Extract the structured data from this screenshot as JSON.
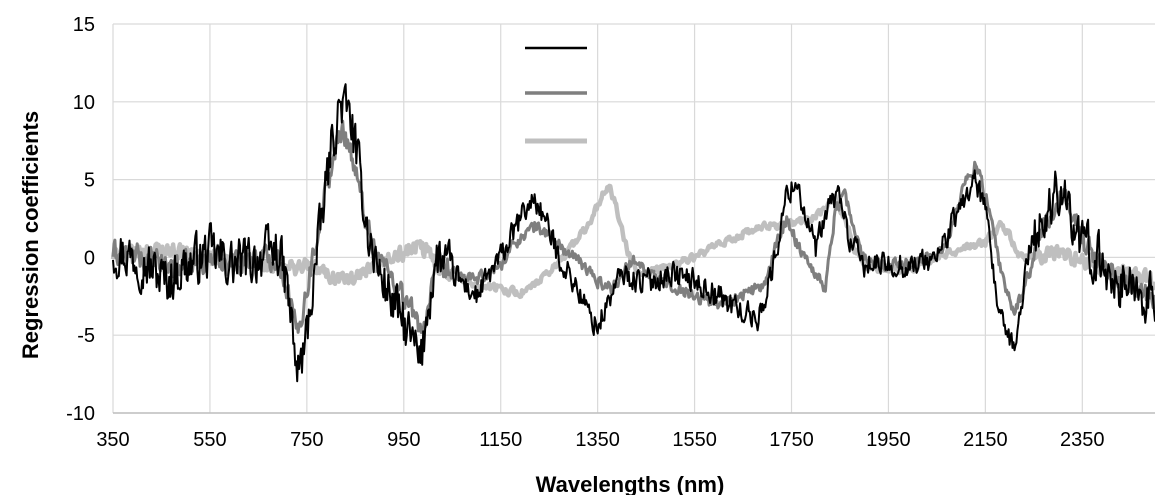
{
  "chart_data": {
    "type": "line",
    "title": "",
    "xlabel": "Wavelengths (nm)",
    "ylabel": "Regression coefficients",
    "xlim": [
      350,
      2500
    ],
    "ylim": [
      -10,
      15
    ],
    "x_ticks": [
      350,
      550,
      750,
      950,
      1150,
      1350,
      1550,
      1750,
      1950,
      2150,
      2350
    ],
    "y_ticks": [
      -10,
      -5,
      0,
      5,
      10,
      15
    ],
    "grid": true,
    "legend": {
      "position": "top-center",
      "entries_labeled": false
    },
    "series": [
      {
        "color": "#000000",
        "noise": 1.6,
        "points": [
          [
            350,
            0.5
          ],
          [
            400,
            0
          ],
          [
            460,
            -1.5
          ],
          [
            500,
            -0.5
          ],
          [
            550,
            0.3
          ],
          [
            600,
            -0.5
          ],
          [
            650,
            0
          ],
          [
            690,
            0.5
          ],
          [
            710,
            -2
          ],
          [
            730,
            -7.5
          ],
          [
            745,
            -6
          ],
          [
            770,
            0
          ],
          [
            800,
            7
          ],
          [
            820,
            10
          ],
          [
            840,
            9
          ],
          [
            860,
            5
          ],
          [
            880,
            1
          ],
          [
            900,
            -1
          ],
          [
            930,
            -3
          ],
          [
            960,
            -5
          ],
          [
            975,
            -6
          ],
          [
            985,
            -7
          ],
          [
            1000,
            -3
          ],
          [
            1020,
            0
          ],
          [
            1050,
            -1
          ],
          [
            1100,
            -2.5
          ],
          [
            1150,
            0
          ],
          [
            1200,
            3
          ],
          [
            1220,
            3.8
          ],
          [
            1240,
            2.5
          ],
          [
            1270,
            0
          ],
          [
            1300,
            -1.5
          ],
          [
            1330,
            -3.5
          ],
          [
            1350,
            -4.5
          ],
          [
            1370,
            -3
          ],
          [
            1400,
            -1
          ],
          [
            1430,
            -1.5
          ],
          [
            1460,
            -1.5
          ],
          [
            1500,
            -1
          ],
          [
            1550,
            -1.5
          ],
          [
            1600,
            -2.5
          ],
          [
            1650,
            -3.5
          ],
          [
            1680,
            -4
          ],
          [
            1710,
            -1
          ],
          [
            1740,
            4
          ],
          [
            1760,
            5
          ],
          [
            1780,
            2.5
          ],
          [
            1800,
            0.5
          ],
          [
            1830,
            3.5
          ],
          [
            1850,
            4
          ],
          [
            1870,
            1
          ],
          [
            1900,
            -0.5
          ],
          [
            1950,
            -0.5
          ],
          [
            2000,
            -0.5
          ],
          [
            2050,
            0
          ],
          [
            2080,
            2
          ],
          [
            2110,
            4
          ],
          [
            2130,
            5
          ],
          [
            2150,
            3
          ],
          [
            2170,
            -2
          ],
          [
            2190,
            -5
          ],
          [
            2210,
            -6
          ],
          [
            2240,
            0.5
          ],
          [
            2280,
            3
          ],
          [
            2310,
            5
          ],
          [
            2340,
            1
          ],
          [
            2380,
            0
          ],
          [
            2420,
            -1.5
          ],
          [
            2460,
            -2
          ],
          [
            2500,
            -3
          ]
        ]
      },
      {
        "color": "#7f7f7f",
        "noise": 0.8,
        "points": [
          [
            350,
            0.3
          ],
          [
            400,
            0
          ],
          [
            460,
            -0.5
          ],
          [
            500,
            -0.5
          ],
          [
            550,
            0
          ],
          [
            600,
            -0.3
          ],
          [
            650,
            0
          ],
          [
            690,
            0
          ],
          [
            710,
            -2
          ],
          [
            730,
            -5
          ],
          [
            750,
            -2
          ],
          [
            780,
            3
          ],
          [
            810,
            7
          ],
          [
            825,
            8.3
          ],
          [
            840,
            7
          ],
          [
            860,
            4
          ],
          [
            880,
            1.5
          ],
          [
            900,
            0
          ],
          [
            920,
            -1
          ],
          [
            950,
            -2.5
          ],
          [
            975,
            -4
          ],
          [
            990,
            -4.5
          ],
          [
            1000,
            -3.5
          ],
          [
            1020,
            -0.5
          ],
          [
            1050,
            -1
          ],
          [
            1100,
            -1.5
          ],
          [
            1150,
            -0.5
          ],
          [
            1180,
            1
          ],
          [
            1220,
            2
          ],
          [
            1250,
            1.5
          ],
          [
            1280,
            0.5
          ],
          [
            1320,
            -0.5
          ],
          [
            1350,
            -1.5
          ],
          [
            1380,
            -2
          ],
          [
            1400,
            -1
          ],
          [
            1430,
            0
          ],
          [
            1450,
            -1
          ],
          [
            1480,
            -1.5
          ],
          [
            1520,
            -2
          ],
          [
            1550,
            -2.5
          ],
          [
            1600,
            -3
          ],
          [
            1640,
            -2.5
          ],
          [
            1680,
            -2
          ],
          [
            1700,
            -1.5
          ],
          [
            1720,
            1
          ],
          [
            1740,
            2.5
          ],
          [
            1760,
            1
          ],
          [
            1780,
            0
          ],
          [
            1800,
            -1
          ],
          [
            1820,
            -2
          ],
          [
            1840,
            3
          ],
          [
            1860,
            4.2
          ],
          [
            1880,
            1.5
          ],
          [
            1900,
            0
          ],
          [
            1950,
            -0.5
          ],
          [
            2000,
            -0.3
          ],
          [
            2050,
            0
          ],
          [
            2080,
            2
          ],
          [
            2110,
            5
          ],
          [
            2130,
            6
          ],
          [
            2150,
            4
          ],
          [
            2170,
            1
          ],
          [
            2190,
            -2
          ],
          [
            2210,
            -3.5
          ],
          [
            2230,
            -2
          ],
          [
            2260,
            1
          ],
          [
            2290,
            3
          ],
          [
            2320,
            4
          ],
          [
            2350,
            1
          ],
          [
            2380,
            0
          ],
          [
            2420,
            -1
          ],
          [
            2460,
            -2
          ],
          [
            2500,
            -3
          ]
        ]
      },
      {
        "color": "#bfbfbf",
        "noise": 0.5,
        "points": [
          [
            350,
            0
          ],
          [
            400,
            0.3
          ],
          [
            460,
            0.5
          ],
          [
            500,
            0.3
          ],
          [
            550,
            0
          ],
          [
            600,
            -0.3
          ],
          [
            650,
            -0.4
          ],
          [
            700,
            -0.7
          ],
          [
            750,
            -0.5
          ],
          [
            800,
            -1.2
          ],
          [
            850,
            -1.5
          ],
          [
            900,
            -0.5
          ],
          [
            950,
            0.3
          ],
          [
            980,
            0.7
          ],
          [
            1000,
            0.3
          ],
          [
            1020,
            -0.5
          ],
          [
            1050,
            -1
          ],
          [
            1100,
            -1.8
          ],
          [
            1150,
            -2
          ],
          [
            1190,
            -2.3
          ],
          [
            1210,
            -2
          ],
          [
            1250,
            -1
          ],
          [
            1290,
            0.5
          ],
          [
            1330,
            2
          ],
          [
            1360,
            4
          ],
          [
            1375,
            4.5
          ],
          [
            1390,
            3
          ],
          [
            1410,
            0.5
          ],
          [
            1430,
            -1
          ],
          [
            1460,
            -1
          ],
          [
            1500,
            -0.5
          ],
          [
            1550,
            0
          ],
          [
            1600,
            0.8
          ],
          [
            1650,
            1.5
          ],
          [
            1700,
            2
          ],
          [
            1750,
            2.2
          ],
          [
            1790,
            2.5
          ],
          [
            1820,
            3
          ],
          [
            1840,
            4
          ],
          [
            1860,
            2.5
          ],
          [
            1880,
            0.5
          ],
          [
            1900,
            -0.5
          ],
          [
            1950,
            -0.8
          ],
          [
            2000,
            -0.7
          ],
          [
            2050,
            0
          ],
          [
            2100,
            0.5
          ],
          [
            2150,
            1
          ],
          [
            2180,
            2
          ],
          [
            2200,
            1.5
          ],
          [
            2220,
            0
          ],
          [
            2260,
            0
          ],
          [
            2300,
            0.3
          ],
          [
            2340,
            0
          ],
          [
            2380,
            -0.5
          ],
          [
            2420,
            -1
          ],
          [
            2460,
            -1
          ],
          [
            2500,
            -1.5
          ]
        ]
      }
    ]
  }
}
